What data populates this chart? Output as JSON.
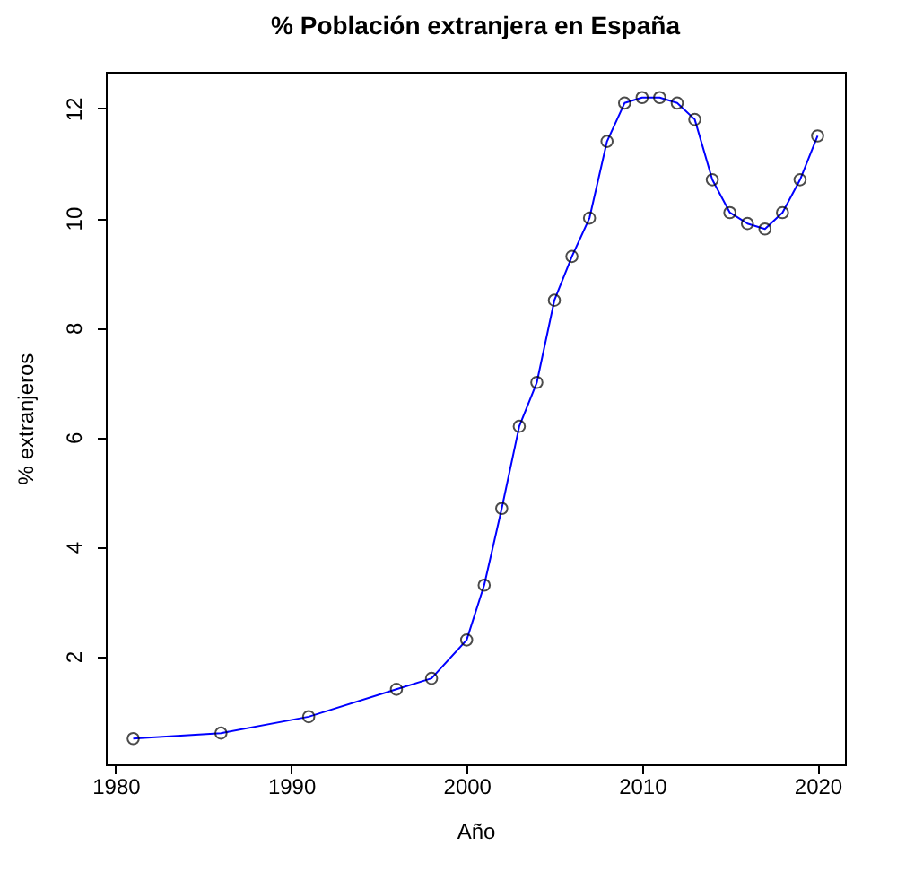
{
  "chart_data": {
    "type": "line",
    "title": "% Población extranjera en España",
    "xlabel": "Año",
    "ylabel": "% extranjeros",
    "x": [
      1981,
      1986,
      1991,
      1996,
      1998,
      2000,
      2001,
      2002,
      2003,
      2004,
      2005,
      2006,
      2007,
      2008,
      2009,
      2010,
      2011,
      2012,
      2013,
      2014,
      2015,
      2016,
      2017,
      2018,
      2019,
      2020
    ],
    "series": [
      {
        "color": "#0000ff",
        "values": [
          0.5,
          0.6,
          0.9,
          1.4,
          1.6,
          2.3,
          3.3,
          4.7,
          6.2,
          7.0,
          8.5,
          9.3,
          10.0,
          11.4,
          12.1,
          12.2,
          12.2,
          12.1,
          11.8,
          10.7,
          10.1,
          9.9,
          9.8,
          10.1,
          10.7,
          11.5
        ]
      }
    ],
    "xlim": [
      1979.44,
      2021.56
    ],
    "xticks": [
      1980,
      1990,
      2000,
      2010,
      2020
    ],
    "ylim": [
      0.03,
      12.67
    ],
    "yticks": [
      2,
      4,
      6,
      8,
      10,
      12
    ],
    "marker": "circle",
    "line_style": "solid",
    "grid": false
  }
}
